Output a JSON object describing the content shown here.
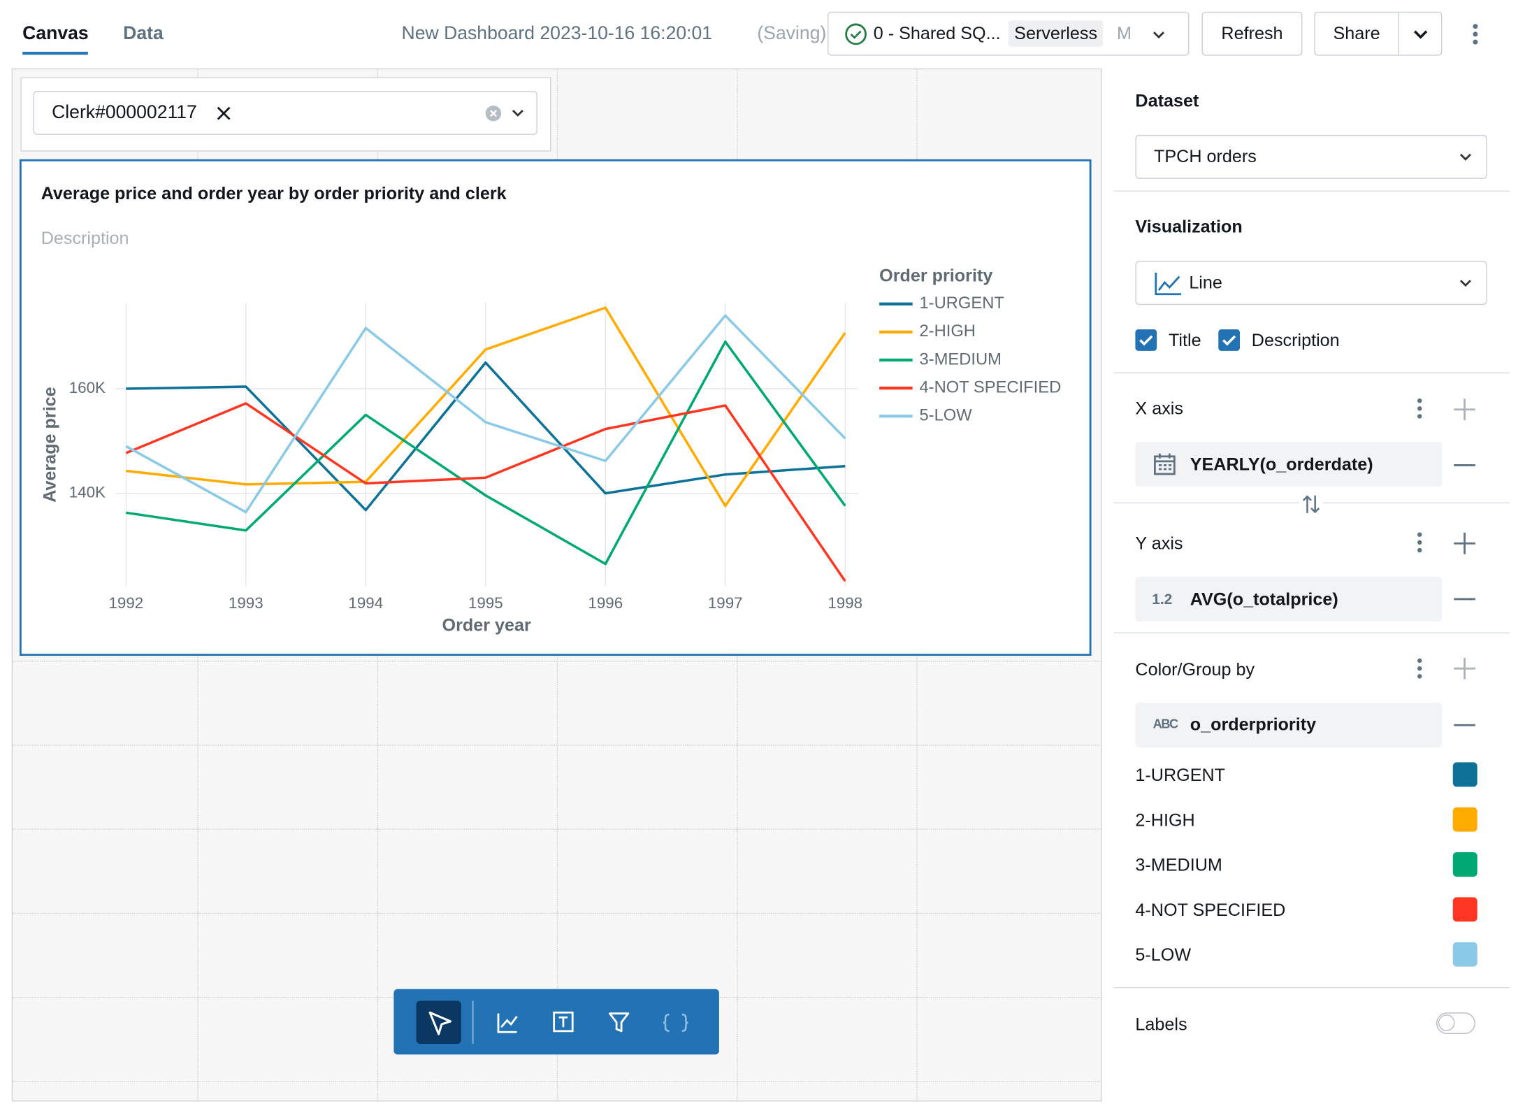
{
  "tabs": [
    "Canvas",
    "Data"
  ],
  "header": {
    "dashboard_name": "New Dashboard 2023-10-16 16:20:01",
    "status": "(Saving)",
    "warehouse": "0 - Shared SQ...",
    "warehouse_type": "Serverless",
    "warehouse_size": "M",
    "refresh": "Refresh",
    "share": "Share"
  },
  "filter": {
    "chip": "Clerk#000002117"
  },
  "widget": {
    "description": "Description"
  },
  "chart_data": {
    "type": "line",
    "title": "Average price and order year by order priority and clerk",
    "legend_title": "Order priority",
    "x_label": "Order year",
    "y_label": "Average price",
    "x": [
      1992,
      1993,
      1994,
      1995,
      1996,
      1997,
      1998
    ],
    "xlim": [
      1992,
      1998
    ],
    "xticks": [
      1992,
      1993,
      1994,
      1995,
      1996,
      1997,
      1998
    ],
    "ylim": [
      122200,
      176400
    ],
    "yticks": [
      {
        "value": 140000,
        "label": "140K"
      },
      {
        "value": 160000,
        "label": "160K"
      }
    ],
    "grid": true,
    "series": [
      {
        "name": "1-URGENT",
        "color": "#0e7197",
        "values": [
          160000,
          160400,
          136800,
          165000,
          140000,
          143600,
          145200
        ]
      },
      {
        "name": "2-HIGH",
        "color": "#ffab00",
        "values": [
          144300,
          141700,
          142200,
          167500,
          175500,
          137600,
          170700
        ]
      },
      {
        "name": "3-MEDIUM",
        "color": "#00a972",
        "values": [
          136300,
          132900,
          155000,
          139600,
          126500,
          169000,
          137600
        ]
      },
      {
        "name": "4-NOT SPECIFIED",
        "color": "#ff3621",
        "values": [
          147700,
          157200,
          141900,
          143000,
          152300,
          156800,
          123200
        ]
      },
      {
        "name": "5-LOW",
        "color": "#8bcae7",
        "values": [
          149000,
          136400,
          171600,
          153600,
          146200,
          174000,
          150500
        ]
      }
    ]
  },
  "panel": {
    "dataset_label": "Dataset",
    "dataset": "TPCH orders",
    "visualization_label": "Visualization",
    "visualization": "Line",
    "title_check": "Title",
    "description_check": "Description",
    "x_axis_label": "X axis",
    "x_field": "YEARLY(o_orderdate)",
    "y_axis_label": "Y axis",
    "y_icon": "1.2",
    "y_field": "AVG(o_totalprice)",
    "group_label": "Color/Group by",
    "group_icon": "ABC",
    "group_field": "o_orderpriority",
    "labels": "Labels"
  }
}
